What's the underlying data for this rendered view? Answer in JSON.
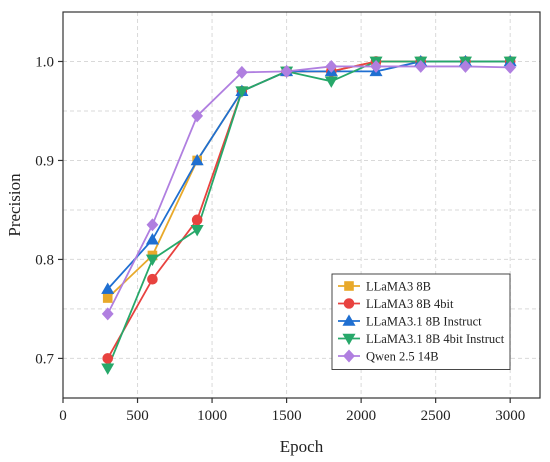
{
  "chart_data": {
    "type": "line",
    "xlabel": "Epoch",
    "ylabel": "Precision",
    "xlim": [
      0,
      3200
    ],
    "ylim": [
      0.66,
      1.05
    ],
    "xticks": [
      0,
      500,
      1000,
      1500,
      2000,
      2500,
      3000
    ],
    "yticks": [
      0.7,
      0.8,
      0.9,
      1.0
    ],
    "xtick_labels": [
      "0",
      "500",
      "1000",
      "1500",
      "2000",
      "2500",
      "3000"
    ],
    "ytick_labels": [
      "0.7",
      "0.8",
      "0.9",
      "1.0"
    ],
    "grid": true,
    "legend_position": "lower-right",
    "x": [
      300,
      600,
      900,
      1200,
      1500,
      1800,
      2100,
      2400,
      2700,
      3000
    ],
    "series": [
      {
        "name": "LLaMA3 8B",
        "marker": "square",
        "color": "#E8A92A",
        "values": [
          0.761,
          0.804,
          0.9,
          0.97,
          0.99,
          0.99,
          1.0,
          1.0,
          1.0,
          1.0
        ]
      },
      {
        "name": "LLaMA3 8B 4bit",
        "marker": "circle",
        "color": "#E8423F",
        "values": [
          0.7,
          0.78,
          0.84,
          0.97,
          0.99,
          0.99,
          1.0,
          1.0,
          1.0,
          1.0
        ]
      },
      {
        "name": "LLaMA3.1 8B Instruct",
        "marker": "triangle-up",
        "color": "#1F6FD1",
        "values": [
          0.77,
          0.82,
          0.9,
          0.97,
          0.99,
          0.99,
          0.99,
          1.0,
          1.0,
          1.0
        ]
      },
      {
        "name": "LLaMA3.1 8B 4bit Instruct",
        "marker": "triangle-down",
        "color": "#27A86A",
        "values": [
          0.69,
          0.8,
          0.83,
          0.97,
          0.99,
          0.98,
          1.0,
          1.0,
          1.0,
          1.0
        ]
      },
      {
        "name": "Qwen 2.5 14B",
        "marker": "diamond",
        "color": "#B07FE0",
        "values": [
          0.745,
          0.835,
          0.945,
          0.989,
          0.99,
          0.995,
          0.995,
          0.995,
          0.995,
          0.994
        ]
      }
    ]
  }
}
